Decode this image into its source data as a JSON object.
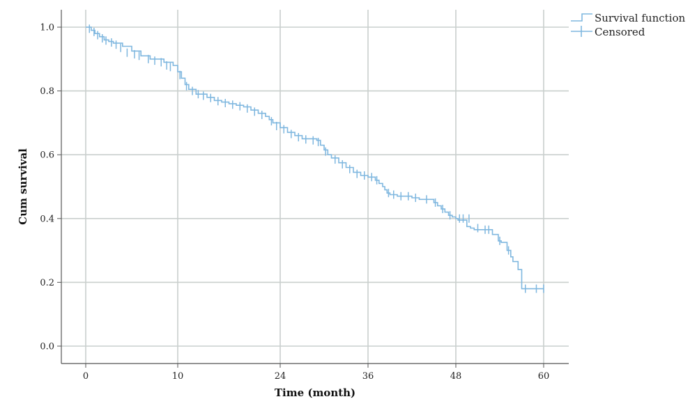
{
  "colors": {
    "series": "#7fb7df",
    "grid": "#c9cfcd",
    "axis": "#555555"
  },
  "chart_data": {
    "type": "line",
    "step": true,
    "xlabel": "Time (month)",
    "ylabel": "Cum survival",
    "xlim": [
      -6.5,
      63
    ],
    "ylim": [
      -0.06,
      1.06
    ],
    "x_ticks": [
      0,
      10,
      24,
      36,
      48,
      60
    ],
    "x_tick_labels": [
      "0",
      "10",
      "24",
      "36",
      "48",
      "60"
    ],
    "y_ticks": [
      0.0,
      0.2,
      0.4,
      0.6,
      0.8,
      1.0
    ],
    "y_tick_labels": [
      "0.0",
      "0.2",
      "0.4",
      "0.6",
      "0.8",
      "1.0"
    ],
    "x_scale": "piecewise (0-10 and 10-60 spans drawn at different spacing)",
    "grid": true,
    "legend": {
      "position": "top-right",
      "entries": [
        "Survival function",
        "Censored"
      ]
    },
    "series": [
      {
        "name": "Survival function",
        "x": [
          0,
          0.6,
          1.0,
          1.5,
          2.0,
          2.5,
          3.0,
          4.0,
          5.0,
          6.0,
          7.0,
          8.5,
          9.5,
          10.0,
          10.5,
          11.0,
          11.5,
          12.5,
          14.0,
          15.0,
          16.0,
          17.0,
          18.0,
          19.0,
          20.0,
          21.0,
          22.0,
          22.5,
          23.0,
          24.0,
          25.0,
          26.0,
          27.0,
          29.0,
          29.5,
          30.0,
          30.5,
          31.0,
          32.0,
          33.0,
          34.0,
          35.0,
          36.0,
          37.0,
          37.5,
          38.0,
          38.3,
          38.6,
          39.0,
          40.0,
          42.0,
          43.0,
          45.0,
          45.5,
          46.0,
          46.5,
          47.0,
          47.5,
          48.0,
          48.3,
          49.5,
          50.0,
          50.5,
          53.0,
          53.8,
          54.2,
          55.0,
          55.5,
          55.8,
          56.5,
          57.0,
          60.0
        ],
        "y": [
          1.0,
          0.99,
          0.98,
          0.97,
          0.96,
          0.955,
          0.95,
          0.94,
          0.925,
          0.91,
          0.9,
          0.89,
          0.88,
          0.86,
          0.84,
          0.82,
          0.805,
          0.79,
          0.78,
          0.77,
          0.765,
          0.76,
          0.755,
          0.75,
          0.74,
          0.73,
          0.72,
          0.71,
          0.7,
          0.685,
          0.67,
          0.66,
          0.65,
          0.645,
          0.63,
          0.615,
          0.6,
          0.59,
          0.575,
          0.56,
          0.545,
          0.535,
          0.53,
          0.52,
          0.51,
          0.5,
          0.49,
          0.48,
          0.475,
          0.47,
          0.465,
          0.46,
          0.45,
          0.44,
          0.43,
          0.42,
          0.41,
          0.405,
          0.4,
          0.395,
          0.375,
          0.37,
          0.365,
          0.35,
          0.33,
          0.325,
          0.3,
          0.28,
          0.265,
          0.24,
          0.18,
          0.18
        ]
      },
      {
        "name": "Censored",
        "x": [
          0.4,
          0.9,
          1.3,
          1.8,
          2.2,
          2.8,
          3.3,
          3.8,
          4.5,
          5.3,
          5.8,
          6.8,
          7.5,
          8.2,
          8.8,
          9.2,
          10.3,
          11.2,
          12.0,
          12.8,
          13.5,
          14.5,
          15.5,
          16.5,
          17.5,
          18.5,
          19.5,
          20.5,
          21.5,
          22.8,
          23.5,
          24.5,
          25.5,
          26.5,
          27.5,
          28.5,
          29.2,
          30.2,
          31.5,
          32.5,
          33.5,
          34.5,
          35.5,
          36.5,
          37.2,
          38.8,
          39.5,
          40.5,
          41.5,
          42.5,
          44.0,
          45.2,
          46.2,
          47.2,
          48.5,
          49.0,
          49.8,
          51.0,
          52.0,
          52.5,
          54.0,
          55.2,
          57.5,
          59.0,
          60.0
        ],
        "y": [
          0.995,
          0.985,
          0.975,
          0.965,
          0.958,
          0.952,
          0.945,
          0.935,
          0.92,
          0.915,
          0.91,
          0.9,
          0.895,
          0.89,
          0.88,
          0.875,
          0.85,
          0.815,
          0.8,
          0.79,
          0.785,
          0.778,
          0.768,
          0.762,
          0.757,
          0.752,
          0.745,
          0.735,
          0.725,
          0.705,
          0.69,
          0.68,
          0.665,
          0.655,
          0.648,
          0.645,
          0.64,
          0.61,
          0.585,
          0.57,
          0.555,
          0.54,
          0.535,
          0.53,
          0.52,
          0.48,
          0.475,
          0.47,
          0.47,
          0.465,
          0.46,
          0.45,
          0.43,
          0.41,
          0.4,
          0.4,
          0.4,
          0.37,
          0.365,
          0.365,
          0.33,
          0.3,
          0.18,
          0.18,
          0.18
        ]
      }
    ]
  }
}
